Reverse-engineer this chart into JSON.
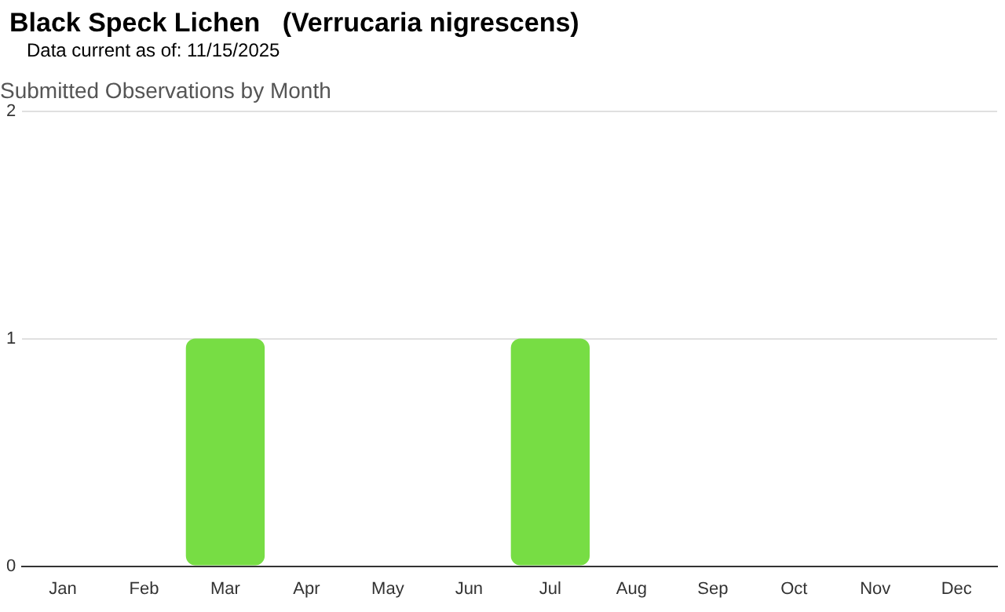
{
  "chart_data": {
    "type": "bar",
    "title": "Black Speck Lichen   (Verrucaria nigrescens)",
    "subtitle": "Submitted Observations by Month",
    "annotations": [
      "Data current as of: 11/15/2025"
    ],
    "categories": [
      "Jan",
      "Feb",
      "Mar",
      "Apr",
      "May",
      "Jun",
      "Jul",
      "Aug",
      "Sep",
      "Oct",
      "Nov",
      "Dec"
    ],
    "values": [
      0,
      0,
      1,
      0,
      0,
      0,
      1,
      0,
      0,
      0,
      0,
      0
    ],
    "color": "#77dd44",
    "ylim": [
      0,
      2
    ],
    "yticks": [
      0,
      1,
      2
    ],
    "grid": "y",
    "legend": false
  }
}
